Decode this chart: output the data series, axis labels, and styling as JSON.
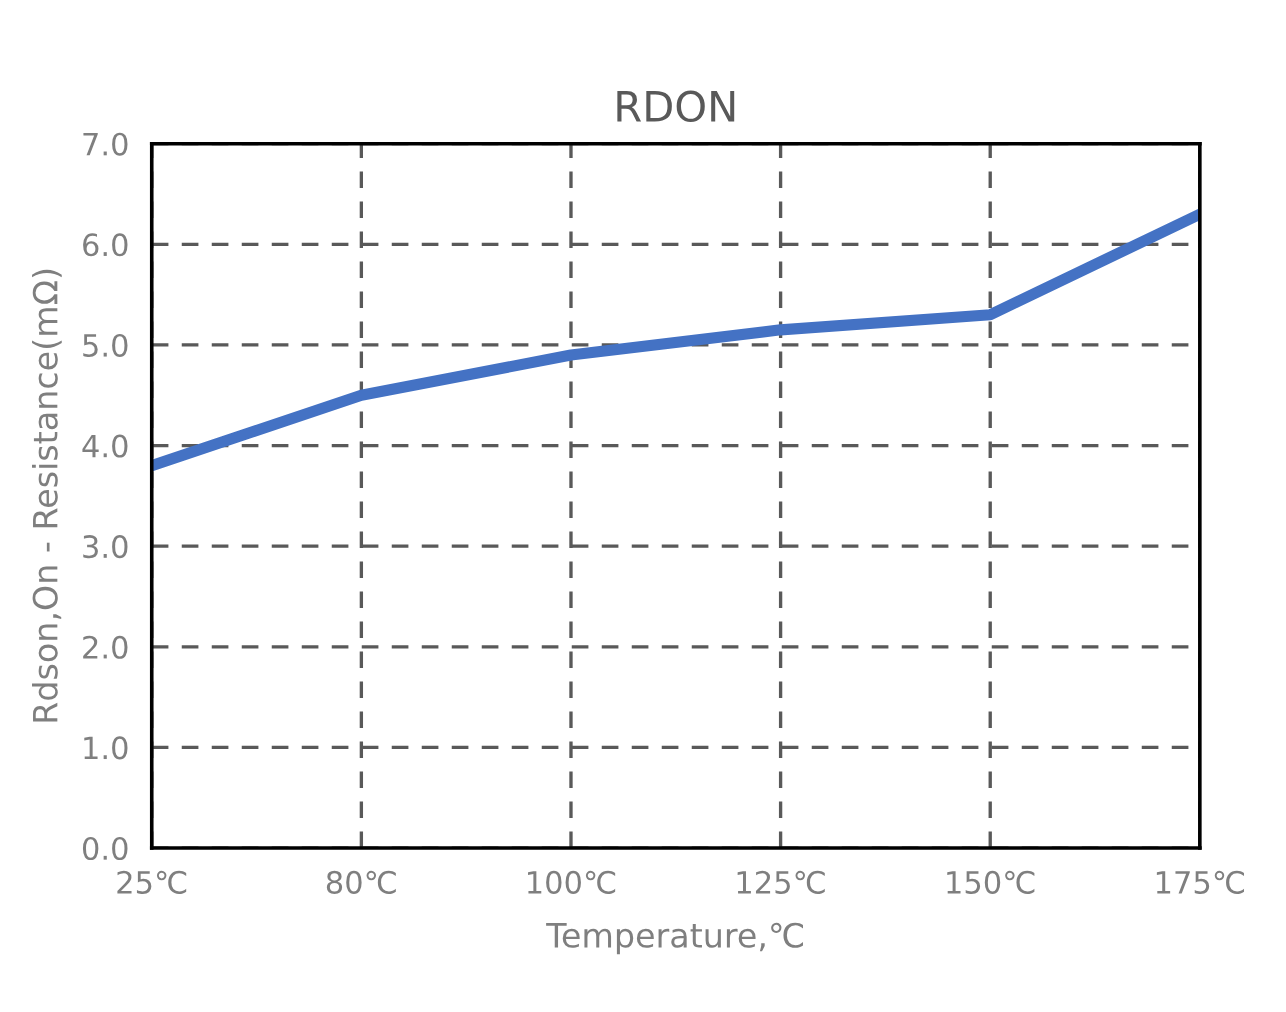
{
  "chart_data": {
    "type": "line",
    "title": "RDON",
    "xlabel": "Temperature,℃",
    "ylabel": "Rdson,On - Resistance(mΩ)",
    "categories": [
      "25℃",
      "80℃",
      "100℃",
      "125℃",
      "150℃",
      "175℃"
    ],
    "series": [
      {
        "color": "#4472c4",
        "values": [
          3.8,
          4.5,
          4.9,
          5.15,
          5.3,
          6.3
        ]
      }
    ],
    "ylim": [
      0,
      7
    ],
    "yticks": [
      {
        "value": 0,
        "label": "0.0"
      },
      {
        "value": 1,
        "label": "1.0"
      },
      {
        "value": 2,
        "label": "2.0"
      },
      {
        "value": 3,
        "label": "3.0"
      },
      {
        "value": 4,
        "label": "4.0"
      },
      {
        "value": 5,
        "label": "5.0"
      },
      {
        "value": 6,
        "label": "6.0"
      },
      {
        "value": 7,
        "label": "7.0"
      }
    ],
    "grid": true,
    "line_style": "solid",
    "marker": "none"
  }
}
